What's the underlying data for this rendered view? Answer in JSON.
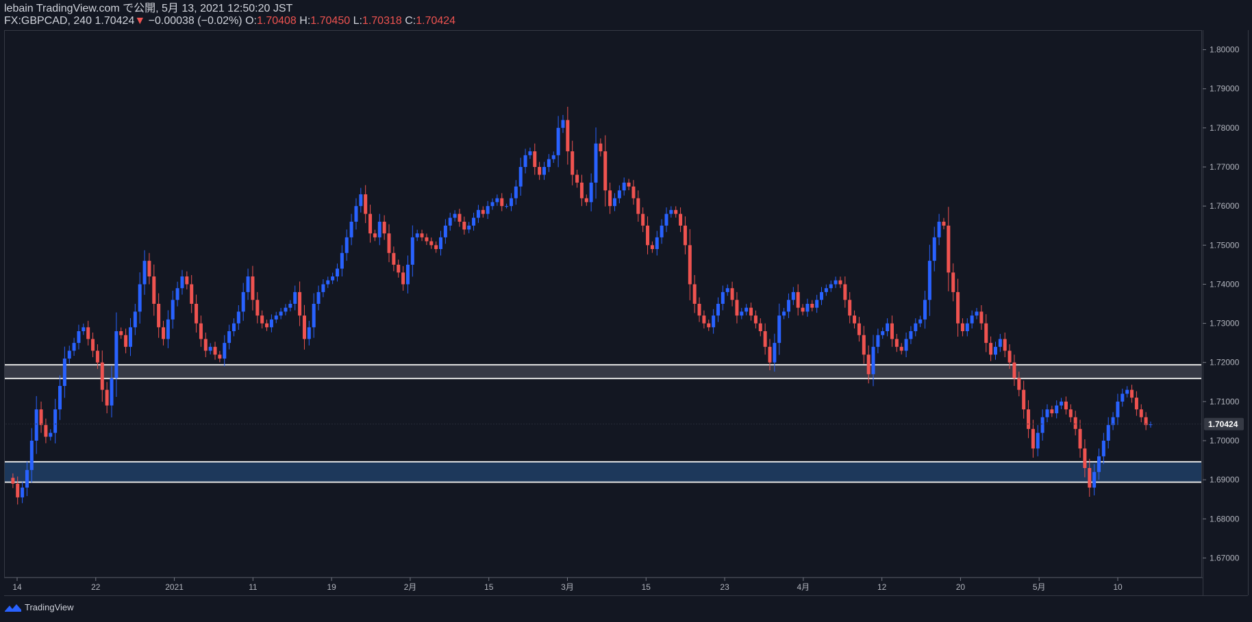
{
  "header": {
    "line1": "lebain TradingView.com で公開, 5月 13, 2021 12:50:20 JST",
    "symbol": "FX:GBPCAD, 240",
    "last": "1.70424",
    "change": "−0.00038 (−0.02%)",
    "o_label": "O:",
    "o_val": "1.70408",
    "h_label": "H:",
    "h_val": "1.70450",
    "l_label": "L:",
    "l_val": "1.70318",
    "c_label": "C:",
    "c_val": "1.70424"
  },
  "brand": {
    "name": "TradingView"
  },
  "colors": {
    "up": "#2962ff",
    "down": "#ef5350",
    "bg": "#131722",
    "grey_zone": "#434651",
    "blue_zone": "#1e3a5f"
  },
  "chart_data": {
    "type": "line",
    "title": "",
    "ylim": [
      1.665,
      1.805
    ],
    "y_ticks": [
      "1.80000",
      "1.79000",
      "1.78000",
      "1.77000",
      "1.76000",
      "1.75000",
      "1.74000",
      "1.73000",
      "1.72000",
      "1.71000",
      "1.70000",
      "1.69000",
      "1.68000",
      "1.67000"
    ],
    "last_price_label": "1.70424",
    "last_price": 1.70424,
    "x_ticks": [
      "14",
      "22",
      "2021",
      "11",
      "19",
      "2月",
      "15",
      "3月",
      "15",
      "23",
      "4月",
      "12",
      "20",
      "5月",
      "10"
    ],
    "zones": [
      {
        "name": "resistance",
        "from": 1.7159,
        "to": 1.7194
      },
      {
        "name": "support",
        "from": 1.6894,
        "to": 1.6946
      }
    ],
    "series": [
      {
        "values": [
          1.6905,
          1.689,
          1.6855,
          1.688,
          1.6925,
          1.7,
          1.708,
          1.704,
          1.701,
          1.702,
          1.708,
          1.714,
          1.721,
          1.723,
          1.725,
          1.728,
          1.729,
          1.726,
          1.723,
          1.72,
          1.713,
          1.709,
          1.716,
          1.728,
          1.727,
          1.724,
          1.729,
          1.733,
          1.74,
          1.746,
          1.742,
          1.735,
          1.729,
          1.726,
          1.731,
          1.736,
          1.739,
          1.742,
          1.74,
          1.735,
          1.73,
          1.726,
          1.723,
          1.724,
          1.722,
          1.721,
          1.725,
          1.728,
          1.73,
          1.733,
          1.738,
          1.742,
          1.736,
          1.732,
          1.73,
          1.729,
          1.731,
          1.732,
          1.733,
          1.734,
          1.735,
          1.738,
          1.732,
          1.726,
          1.729,
          1.735,
          1.738,
          1.74,
          1.741,
          1.742,
          1.744,
          1.748,
          1.752,
          1.756,
          1.76,
          1.763,
          1.758,
          1.753,
          1.752,
          1.756,
          1.753,
          1.748,
          1.745,
          1.743,
          1.74,
          1.745,
          1.752,
          1.753,
          1.752,
          1.751,
          1.75,
          1.749,
          1.752,
          1.755,
          1.757,
          1.758,
          1.756,
          1.754,
          1.755,
          1.757,
          1.759,
          1.758,
          1.76,
          1.761,
          1.762,
          1.76,
          1.76,
          1.762,
          1.765,
          1.77,
          1.773,
          1.774,
          1.77,
          1.768,
          1.77,
          1.772,
          1.773,
          1.78,
          1.782,
          1.774,
          1.768,
          1.766,
          1.762,
          1.761,
          1.766,
          1.776,
          1.774,
          1.764,
          1.76,
          1.762,
          1.764,
          1.766,
          1.765,
          1.762,
          1.758,
          1.755,
          1.75,
          1.749,
          1.752,
          1.755,
          1.758,
          1.759,
          1.758,
          1.755,
          1.75,
          1.74,
          1.735,
          1.732,
          1.73,
          1.729,
          1.732,
          1.735,
          1.738,
          1.739,
          1.736,
          1.732,
          1.733,
          1.734,
          1.732,
          1.73,
          1.728,
          1.724,
          1.72,
          1.725,
          1.732,
          1.733,
          1.736,
          1.738,
          1.734,
          1.733,
          1.735,
          1.734,
          1.736,
          1.738,
          1.739,
          1.74,
          1.741,
          1.74,
          1.736,
          1.732,
          1.73,
          1.727,
          1.722,
          1.717,
          1.724,
          1.727,
          1.728,
          1.73,
          1.726,
          1.724,
          1.723,
          1.726,
          1.728,
          1.73,
          1.731,
          1.736,
          1.746,
          1.752,
          1.756,
          1.755,
          1.743,
          1.738,
          1.73,
          1.728,
          1.73,
          1.732,
          1.733,
          1.73,
          1.725,
          1.722,
          1.724,
          1.726,
          1.723,
          1.72,
          1.716,
          1.713,
          1.708,
          1.703,
          1.698,
          1.702,
          1.706,
          1.708,
          1.707,
          1.709,
          1.71,
          1.708,
          1.706,
          1.703,
          1.698,
          1.693,
          1.688,
          1.692,
          1.696,
          1.7,
          1.704,
          1.706,
          1.71,
          1.712,
          1.713,
          1.711,
          1.708,
          1.706,
          1.704,
          1.7042
        ]
      }
    ]
  }
}
